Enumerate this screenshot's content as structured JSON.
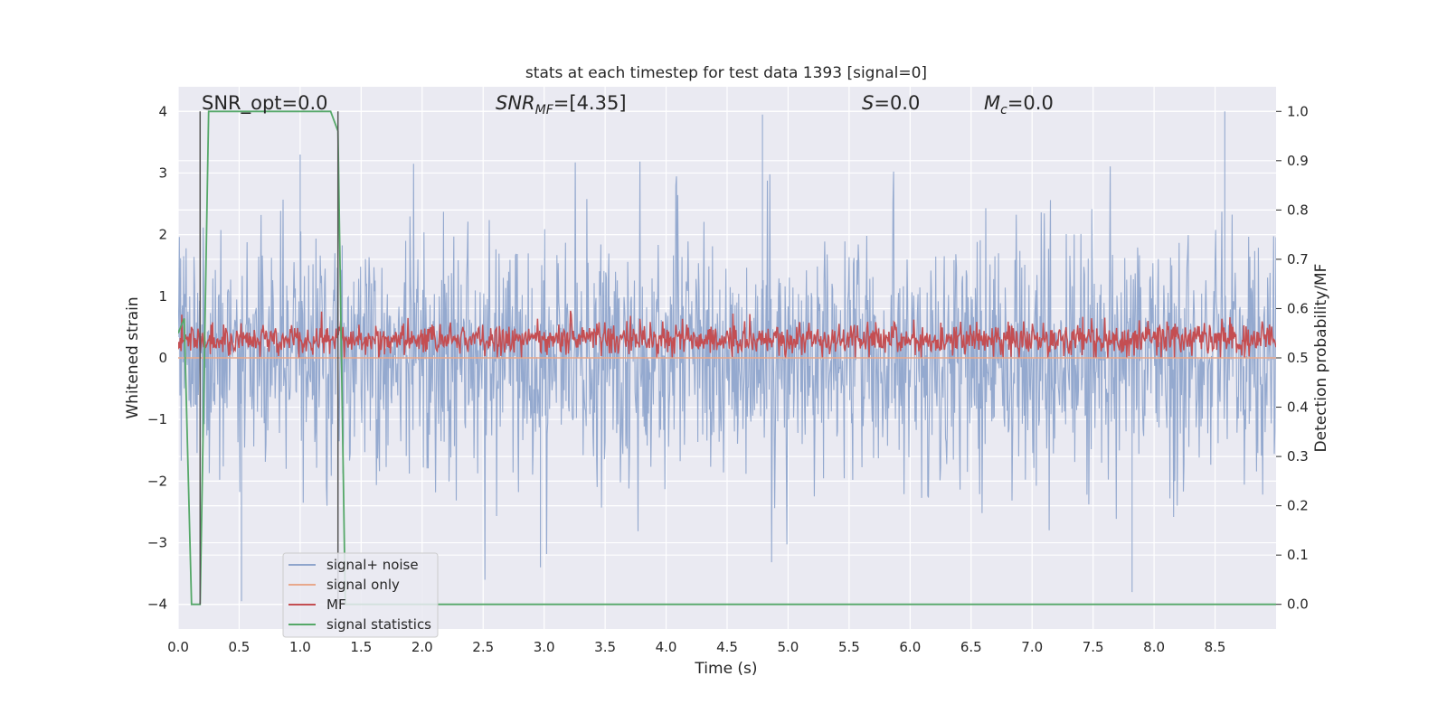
{
  "chart_data": {
    "type": "line",
    "title": "stats at each timestep for test data 1393 [signal=0]",
    "xlabel": "Time (s)",
    "ylabel": "Whitened strain",
    "ylabel_right": "Detection probability/MF",
    "xlim": [
      0.0,
      9.0
    ],
    "ylim": [
      -4.4,
      4.4
    ],
    "ylim_right": [
      -0.05,
      1.05
    ],
    "xticks": [
      "0.0",
      "0.5",
      "1.0",
      "1.5",
      "2.0",
      "2.5",
      "3.0",
      "3.5",
      "4.0",
      "4.5",
      "5.0",
      "5.5",
      "6.0",
      "6.5",
      "7.0",
      "7.5",
      "8.0",
      "8.5"
    ],
    "yticks": [
      "4",
      "3",
      "2",
      "1",
      "0",
      "−1",
      "−2",
      "−3",
      "−4"
    ],
    "yticks_right": [
      "1.0",
      "0.9",
      "0.8",
      "0.7",
      "0.6",
      "0.5",
      "0.4",
      "0.3",
      "0.2",
      "0.1",
      "0.0"
    ],
    "annotations": {
      "snr_opt": "SNR_opt=0.0",
      "snr_mf": "=[4.35]",
      "snr_mf_symbol": "SNR",
      "snr_mf_sub": "MF",
      "s_symbol": "S",
      "s_value": "=0.0",
      "mc_symbol": "M",
      "mc_sub": "c",
      "mc_value": "=0.0"
    },
    "vlines_x": [
      0.18,
      1.31
    ],
    "series": [
      {
        "name": "signal+ noise",
        "color": "#8fa5cc",
        "axis": "left",
        "description": "dense noise, envelope approx ±2.5 with peaks to ±4",
        "noise_amplitude": 1.0,
        "peaks": [
          [
            0.52,
            -3.95
          ],
          [
            4.79,
            3.95
          ],
          [
            8.58,
            4.0
          ],
          [
            7.82,
            -3.8
          ],
          [
            1.0,
            3.3
          ],
          [
            2.97,
            -3.4
          ]
        ]
      },
      {
        "name": "signal only",
        "color": "#e8a88c",
        "axis": "left",
        "x": [
          0.0,
          9.0
        ],
        "y": [
          0.0,
          0.0
        ]
      },
      {
        "name": "MF",
        "color": "#c44e52",
        "axis": "left",
        "description": "matched filter output, values between 0.0 and ~0.9"
      },
      {
        "name": "signal statistics",
        "color": "#55a868",
        "axis": "right",
        "x": [
          0.0,
          0.05,
          0.11,
          0.18,
          0.25,
          1.25,
          1.31,
          1.37,
          1.45,
          9.0
        ],
        "y": [
          0.55,
          0.58,
          0.0,
          0.0,
          1.0,
          1.0,
          0.96,
          0.0,
          0.0,
          0.0
        ]
      }
    ],
    "legend": {
      "location": "lower-left",
      "entries": [
        "signal+ noise",
        "signal only",
        "MF",
        "signal statistics"
      ]
    },
    "background": "#eaeaf2",
    "grid": true
  }
}
